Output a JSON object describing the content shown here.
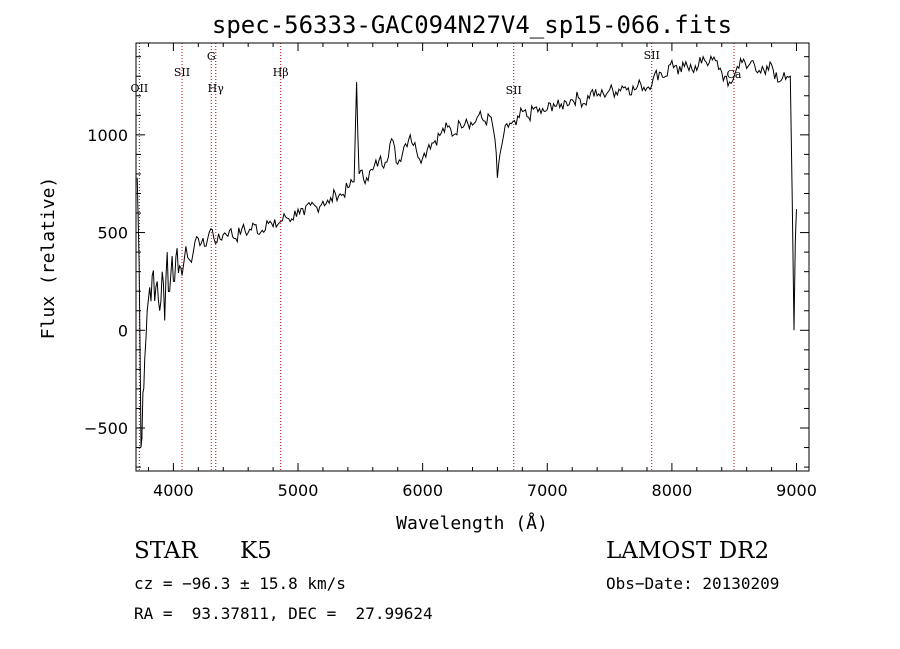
{
  "chart_data": {
    "type": "line",
    "title": "spec-56333-GAC094N27V4_sp15-066.fits",
    "xlabel": "Wavelength (Å)",
    "ylabel": "Flux (relative)",
    "xlim": [
      3700,
      9100
    ],
    "ylim": [
      -720,
      1470
    ],
    "x_ticks": [
      4000,
      5000,
      6000,
      7000,
      8000,
      9000
    ],
    "y_ticks": [
      -500,
      0,
      500,
      1000
    ],
    "x_tick_labels": [
      "4000",
      "5000",
      "6000",
      "7000",
      "8000",
      "9000"
    ],
    "y_tick_labels": [
      "−500",
      "0",
      "500",
      "1000"
    ],
    "grid": false,
    "line_color": "#000000",
    "marker_color": "#c00000",
    "lines": [
      {
        "label": "OII",
        "x": 3727
      },
      {
        "label": "SII",
        "x": 4069
      },
      {
        "label": "G",
        "x": 4304
      },
      {
        "label": "Hγ",
        "x": 4340
      },
      {
        "label": "Hβ",
        "x": 4861
      },
      {
        "label": "SII",
        "x": 6731
      },
      {
        "label": "SII",
        "x": 7838
      },
      {
        "label": "Ca",
        "x": 8498
      }
    ],
    "series": [
      {
        "x": [
          3710,
          3725,
          3740,
          3755,
          3770,
          3790,
          3810,
          3830,
          3850,
          3870,
          3890,
          3910,
          3930,
          3950,
          3970,
          3990,
          4010,
          4030,
          4050,
          4070,
          4100,
          4130,
          4160,
          4200,
          4250,
          4300,
          4350,
          4400,
          4450,
          4500,
          4550,
          4600,
          4650,
          4700,
          4750,
          4800,
          4850,
          4900,
          4950,
          5000,
          5050,
          5100,
          5150,
          5200,
          5250,
          5300,
          5350,
          5400,
          5450,
          5470,
          5490,
          5550,
          5600,
          5650,
          5700,
          5750,
          5800,
          5850,
          5900,
          5950,
          6000,
          6050,
          6100,
          6150,
          6200,
          6250,
          6300,
          6350,
          6400,
          6450,
          6500,
          6550,
          6580,
          6600,
          6620,
          6650,
          6700,
          6750,
          6800,
          6850,
          6900,
          6950,
          7000,
          7050,
          7100,
          7150,
          7200,
          7250,
          7300,
          7350,
          7400,
          7450,
          7500,
          7550,
          7600,
          7650,
          7700,
          7750,
          7800,
          7850,
          7900,
          7950,
          8000,
          8050,
          8100,
          8150,
          8200,
          8250,
          8300,
          8350,
          8400,
          8450,
          8500,
          8550,
          8600,
          8650,
          8700,
          8750,
          8800,
          8850,
          8900,
          8950,
          8980,
          8990,
          9000
        ],
        "y": [
          780,
          350,
          -600,
          -320,
          -150,
          100,
          220,
          280,
          150,
          250,
          100,
          300,
          50,
          400,
          200,
          380,
          250,
          420,
          330,
          280,
          430,
          360,
          400,
          470,
          430,
          520,
          450,
          490,
          510,
          470,
          520,
          500,
          540,
          500,
          560,
          530,
          550,
          580,
          570,
          620,
          590,
          640,
          630,
          660,
          650,
          700,
          690,
          730,
          760,
          1270,
          800,
          780,
          820,
          870,
          860,
          980,
          850,
          940,
          1000,
          920,
          880,
          950,
          970,
          1010,
          1040,
          1000,
          1060,
          1080,
          1050,
          1100,
          1070,
          1090,
          980,
          780,
          900,
          1000,
          1060,
          1050,
          1120,
          1090,
          1140,
          1110,
          1130,
          1160,
          1140,
          1170,
          1180,
          1190,
          1160,
          1220,
          1200,
          1210,
          1230,
          1220,
          1250,
          1240,
          1230,
          1260,
          1240,
          1290,
          1320,
          1300,
          1380,
          1310,
          1350,
          1360,
          1330,
          1400,
          1370,
          1380,
          1320,
          1250,
          1300,
          1390,
          1340,
          1380,
          1330,
          1310,
          1360,
          1270,
          1320,
          1300,
          0,
          450,
          620
        ]
      }
    ]
  },
  "info": {
    "object_class": "STAR",
    "subclass": "K5",
    "release": "LAMOST DR2",
    "cz": "cz = −96.3 ± 15.8 km/s",
    "obs_date": "Obs−Date: 20130209",
    "coords": "RA =  93.37811, DEC =  27.99624"
  }
}
